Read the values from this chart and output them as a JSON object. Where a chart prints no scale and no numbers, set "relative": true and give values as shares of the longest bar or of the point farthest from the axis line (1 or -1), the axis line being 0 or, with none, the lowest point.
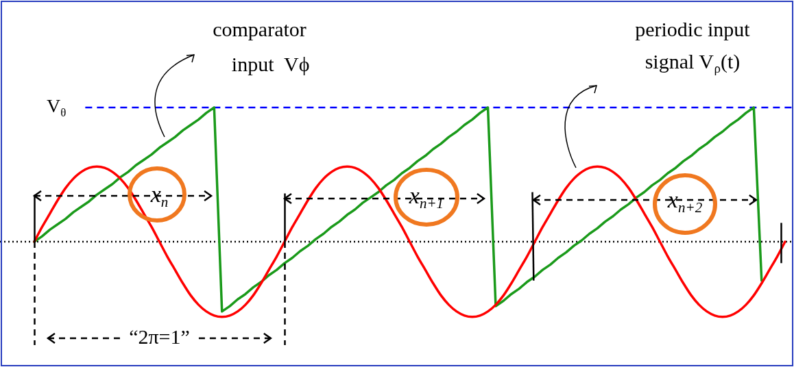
{
  "chart_data": {
    "type": "line",
    "relative": true,
    "categories": [
      null,
      null,
      null,
      null,
      null,
      null,
      null,
      null,
      null,
      null,
      null,
      null,
      null,
      null,
      null,
      null,
      null,
      null,
      null,
      null,
      null,
      null,
      null,
      null,
      null,
      null,
      null,
      null,
      null,
      null,
      null,
      null,
      null,
      null,
      null,
      null,
      null,
      null,
      null,
      null,
      null,
      null,
      null,
      null,
      null,
      null,
      null,
      null,
      null,
      null,
      null,
      null,
      null,
      null,
      null,
      null,
      null,
      null,
      null,
      null,
      null,
      null,
      null,
      null,
      null,
      null,
      null,
      null,
      null,
      null,
      null,
      null,
      null,
      null,
      null,
      null,
      null,
      null,
      null,
      null,
      null,
      null,
      null,
      null,
      null,
      null,
      null,
      null,
      null,
      null,
      null,
      null,
      null,
      null,
      null,
      null,
      null
    ],
    "series": [
      {
        "color": "#ff0000",
        "values": [
          0,
          0.11,
          0.21,
          0.31,
          0.4,
          0.47,
          0.52,
          0.55,
          0.56,
          0.55,
          0.52,
          0.47,
          0.4,
          0.31,
          0.21,
          0.11,
          0,
          -0.11,
          -0.21,
          -0.31,
          -0.4,
          -0.47,
          -0.52,
          -0.55,
          -0.56,
          -0.55,
          -0.52,
          -0.47,
          -0.4,
          -0.31,
          -0.21,
          -0.11,
          0,
          0.11,
          0.21,
          0.31,
          0.4,
          0.47,
          0.52,
          0.55,
          0.56,
          0.55,
          0.52,
          0.47,
          0.4,
          0.31,
          0.21,
          0.11,
          0,
          -0.11,
          -0.21,
          -0.31,
          -0.4,
          -0.47,
          -0.52,
          -0.55,
          -0.56,
          -0.55,
          -0.52,
          -0.47,
          -0.4,
          -0.31,
          -0.21,
          -0.11,
          0,
          0.11,
          0.21,
          0.31,
          0.4,
          0.47,
          0.52,
          0.55,
          0.56,
          0.55,
          0.52,
          0.47,
          0.4,
          0.31,
          0.21,
          0.11,
          0,
          -0.11,
          -0.21,
          -0.31,
          -0.4,
          -0.47,
          -0.52,
          -0.55,
          -0.56,
          -0.55,
          -0.52,
          -0.47,
          -0.4,
          -0.31,
          -0.21,
          -0.11,
          0
        ]
      },
      {
        "color": "#1a9a1a",
        "values": [
          0,
          0.04,
          0.09,
          0.13,
          0.17,
          0.22,
          0.26,
          0.3,
          0.35,
          0.39,
          0.43,
          0.48,
          0.52,
          0.57,
          0.61,
          0.65,
          0.7,
          0.74,
          0.78,
          0.83,
          0.87,
          0.91,
          0.96,
          1,
          -0.52,
          -0.48,
          -0.43,
          -0.39,
          -0.34,
          -0.3,
          -0.25,
          -0.21,
          -0.16,
          -0.12,
          -0.07,
          -0.03,
          0.02,
          0.06,
          0.11,
          0.15,
          0.2,
          0.24,
          0.29,
          0.33,
          0.37,
          0.42,
          0.46,
          0.51,
          0.55,
          0.6,
          0.64,
          0.69,
          0.73,
          0.78,
          0.82,
          0.87,
          0.91,
          0.96,
          1,
          -0.48,
          -0.44,
          -0.39,
          -0.35,
          -0.3,
          -0.26,
          -0.21,
          -0.17,
          -0.12,
          -0.08,
          -0.03,
          0.01,
          0.06,
          0.1,
          0.15,
          0.19,
          0.24,
          0.28,
          0.33,
          0.37,
          0.42,
          0.46,
          0.51,
          0.55,
          0.6,
          0.64,
          0.69,
          0.73,
          0.78,
          0.82,
          0.87,
          0.91,
          0.96,
          1,
          -0.29,
          null,
          null,
          null
        ]
      }
    ],
    "ref_lines": [
      {
        "axis": "y",
        "value": 1,
        "label": "V$_{θ}$",
        "color": "#0000ff",
        "line_style": "dashed"
      },
      {
        "axis": "y",
        "value": 0,
        "color": "#000000",
        "line_style": "dotted"
      }
    ],
    "annotations": [
      "comparator",
      "input  Vϕ",
      "periodic input",
      "signal V$_{ρ}$(t)",
      "x$_{n}$",
      "x$_{n+1}$",
      "x$_{n+2}$",
      "“2π=1”"
    ]
  }
}
